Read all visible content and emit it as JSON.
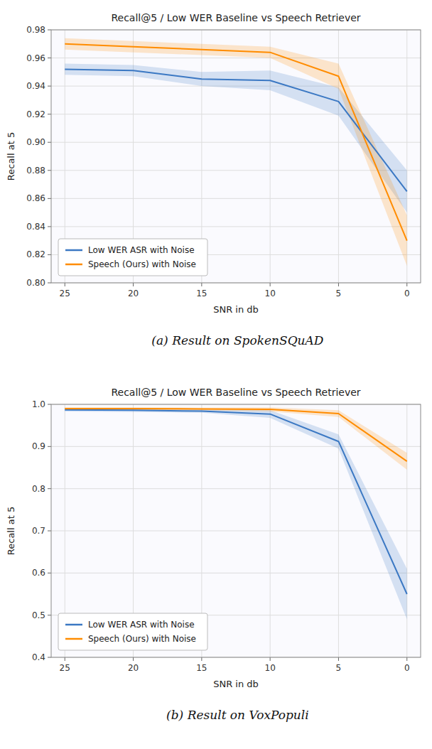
{
  "chart_data": [
    {
      "type": "line",
      "title": "Recall@5 / Low WER Baseline vs Speech Retriever",
      "xlabel": "SNR in db",
      "ylabel": "Recall at 5",
      "annotations": [
        "(a) Result on SpokenSQuAD"
      ],
      "x": [
        25,
        20,
        15,
        10,
        5,
        0
      ],
      "series": [
        {
          "name": "Low WER ASR with Noise",
          "color": "#3b78c3",
          "values": [
            0.952,
            0.951,
            0.945,
            0.944,
            0.929,
            0.865
          ],
          "lo": [
            0.948,
            0.947,
            0.94,
            0.937,
            0.919,
            0.85
          ],
          "hi": [
            0.956,
            0.955,
            0.95,
            0.951,
            0.939,
            0.88
          ]
        },
        {
          "name": "Speech (Ours) with Noise",
          "color": "#ff8c00",
          "values": [
            0.97,
            0.968,
            0.966,
            0.964,
            0.947,
            0.83
          ],
          "lo": [
            0.966,
            0.964,
            0.962,
            0.96,
            0.938,
            0.812
          ],
          "hi": [
            0.974,
            0.972,
            0.97,
            0.968,
            0.956,
            0.848
          ]
        }
      ],
      "xlim": [
        26,
        -1
      ],
      "xticks": [
        25,
        20,
        15,
        10,
        5,
        0
      ],
      "ylim": [
        0.8,
        0.98
      ],
      "yticks": [
        {
          "value": 0.8,
          "label": "0.80"
        },
        0.82,
        0.84,
        0.86,
        0.88,
        {
          "value": 0.9,
          "label": "0.90"
        },
        0.92,
        0.94,
        0.96,
        0.98
      ],
      "grid": true,
      "legend": "lower left"
    },
    {
      "type": "line",
      "title": "Recall@5 / Low WER Baseline vs Speech Retriever",
      "xlabel": "SNR in db",
      "ylabel": "Recall at 5",
      "annotations": [
        "(b) Result on VoxPopuli"
      ],
      "x": [
        25,
        20,
        15,
        10,
        5,
        0
      ],
      "series": [
        {
          "name": "Low WER ASR with Noise",
          "color": "#3b78c3",
          "values": [
            0.987,
            0.986,
            0.984,
            0.977,
            0.912,
            0.55
          ],
          "lo": [
            0.983,
            0.982,
            0.98,
            0.968,
            0.895,
            0.49
          ],
          "hi": [
            0.991,
            0.99,
            0.988,
            0.986,
            0.929,
            0.61
          ]
        },
        {
          "name": "Speech (Ours) with Noise",
          "color": "#ff8c00",
          "values": [
            0.99,
            0.99,
            0.989,
            0.988,
            0.978,
            0.865
          ],
          "lo": [
            0.987,
            0.987,
            0.986,
            0.983,
            0.97,
            0.845
          ],
          "hi": [
            0.993,
            0.993,
            0.992,
            0.993,
            0.986,
            0.885
          ]
        }
      ],
      "xlim": [
        26,
        -1
      ],
      "xticks": [
        25,
        20,
        15,
        10,
        5,
        0
      ],
      "ylim": [
        0.4,
        1.0
      ],
      "yticks": [
        0.4,
        0.5,
        0.6,
        0.7,
        0.8,
        0.9,
        {
          "value": 1,
          "label": "1.0"
        }
      ],
      "grid": true,
      "legend": "lower left"
    }
  ]
}
